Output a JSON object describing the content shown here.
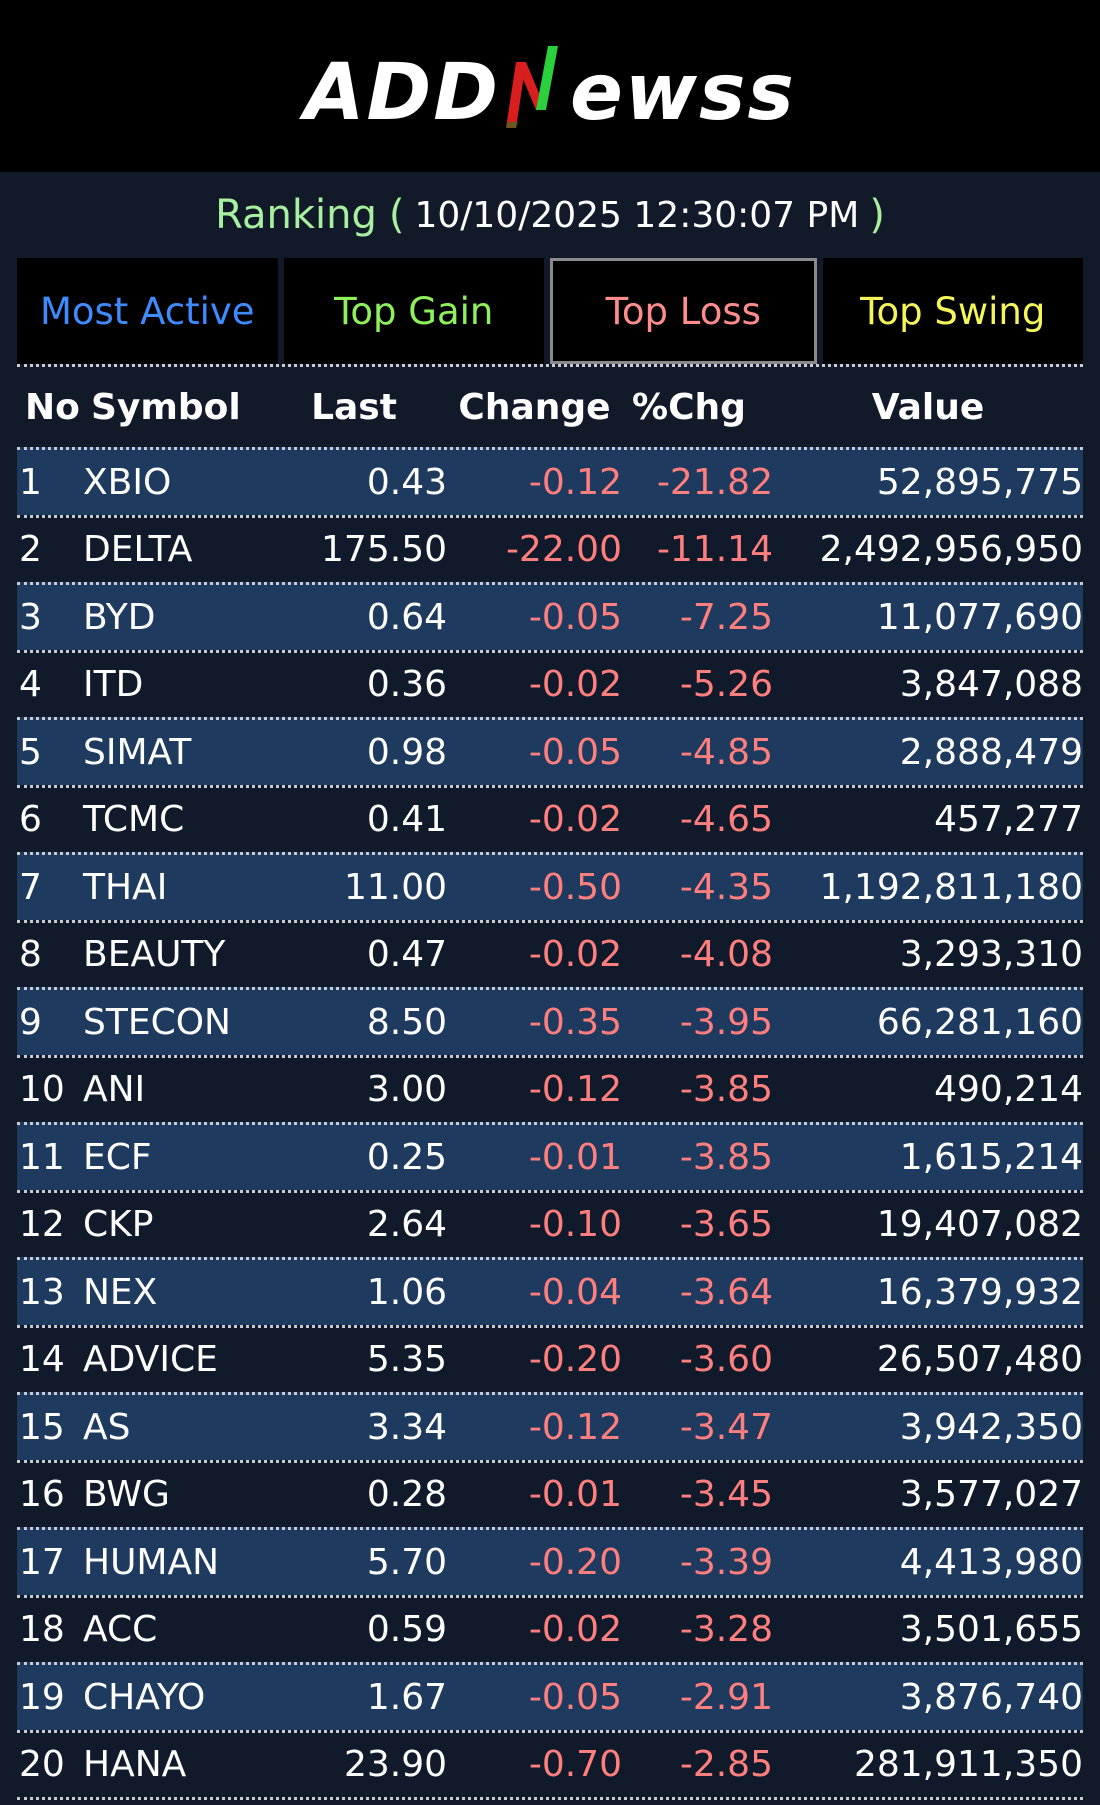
{
  "brand": {
    "left": "ADD",
    "right": "ewss"
  },
  "ranking": {
    "label": "Ranking",
    "paren_open": "(",
    "timestamp": "10/10/2025 12:30:07 PM",
    "paren_close": ")"
  },
  "tabs": [
    {
      "label": "Most Active",
      "color": "#3d8bff",
      "selected": false
    },
    {
      "label": "Top Gain",
      "color": "#8ef05a",
      "selected": false
    },
    {
      "label": "Top Loss",
      "color": "#ff8c8c",
      "selected": true
    },
    {
      "label": "Top Swing",
      "color": "#f5f55a",
      "selected": false
    }
  ],
  "columns": {
    "no": "No",
    "symbol": "Symbol",
    "last": "Last",
    "change": "Change",
    "pct": "%Chg",
    "value": "Value"
  },
  "rows": [
    {
      "no": "1",
      "symbol": "XBIO",
      "last": "0.43",
      "change": "-0.12",
      "pct": "-21.82",
      "value": "52,895,775"
    },
    {
      "no": "2",
      "symbol": "DELTA",
      "last": "175.50",
      "change": "-22.00",
      "pct": "-11.14",
      "value": "2,492,956,950"
    },
    {
      "no": "3",
      "symbol": "BYD",
      "last": "0.64",
      "change": "-0.05",
      "pct": "-7.25",
      "value": "11,077,690"
    },
    {
      "no": "4",
      "symbol": "ITD",
      "last": "0.36",
      "change": "-0.02",
      "pct": "-5.26",
      "value": "3,847,088"
    },
    {
      "no": "5",
      "symbol": "SIMAT",
      "last": "0.98",
      "change": "-0.05",
      "pct": "-4.85",
      "value": "2,888,479"
    },
    {
      "no": "6",
      "symbol": "TCMC",
      "last": "0.41",
      "change": "-0.02",
      "pct": "-4.65",
      "value": "457,277"
    },
    {
      "no": "7",
      "symbol": "THAI",
      "last": "11.00",
      "change": "-0.50",
      "pct": "-4.35",
      "value": "1,192,811,180"
    },
    {
      "no": "8",
      "symbol": "BEAUTY",
      "last": "0.47",
      "change": "-0.02",
      "pct": "-4.08",
      "value": "3,293,310"
    },
    {
      "no": "9",
      "symbol": "STECON",
      "last": "8.50",
      "change": "-0.35",
      "pct": "-3.95",
      "value": "66,281,160"
    },
    {
      "no": "10",
      "symbol": "ANI",
      "last": "3.00",
      "change": "-0.12",
      "pct": "-3.85",
      "value": "490,214"
    },
    {
      "no": "11",
      "symbol": "ECF",
      "last": "0.25",
      "change": "-0.01",
      "pct": "-3.85",
      "value": "1,615,214"
    },
    {
      "no": "12",
      "symbol": "CKP",
      "last": "2.64",
      "change": "-0.10",
      "pct": "-3.65",
      "value": "19,407,082"
    },
    {
      "no": "13",
      "symbol": "NEX",
      "last": "1.06",
      "change": "-0.04",
      "pct": "-3.64",
      "value": "16,379,932"
    },
    {
      "no": "14",
      "symbol": "ADVICE",
      "last": "5.35",
      "change": "-0.20",
      "pct": "-3.60",
      "value": "26,507,480"
    },
    {
      "no": "15",
      "symbol": "AS",
      "last": "3.34",
      "change": "-0.12",
      "pct": "-3.47",
      "value": "3,942,350"
    },
    {
      "no": "16",
      "symbol": "BWG",
      "last": "0.28",
      "change": "-0.01",
      "pct": "-3.45",
      "value": "3,577,027"
    },
    {
      "no": "17",
      "symbol": "HUMAN",
      "last": "5.70",
      "change": "-0.20",
      "pct": "-3.39",
      "value": "4,413,980"
    },
    {
      "no": "18",
      "symbol": "ACC",
      "last": "0.59",
      "change": "-0.02",
      "pct": "-3.28",
      "value": "3,501,655"
    },
    {
      "no": "19",
      "symbol": "CHAYO",
      "last": "1.67",
      "change": "-0.05",
      "pct": "-2.91",
      "value": "3,876,740"
    },
    {
      "no": "20",
      "symbol": "HANA",
      "last": "23.90",
      "change": "-0.70",
      "pct": "-2.85",
      "value": "281,911,350"
    }
  ]
}
